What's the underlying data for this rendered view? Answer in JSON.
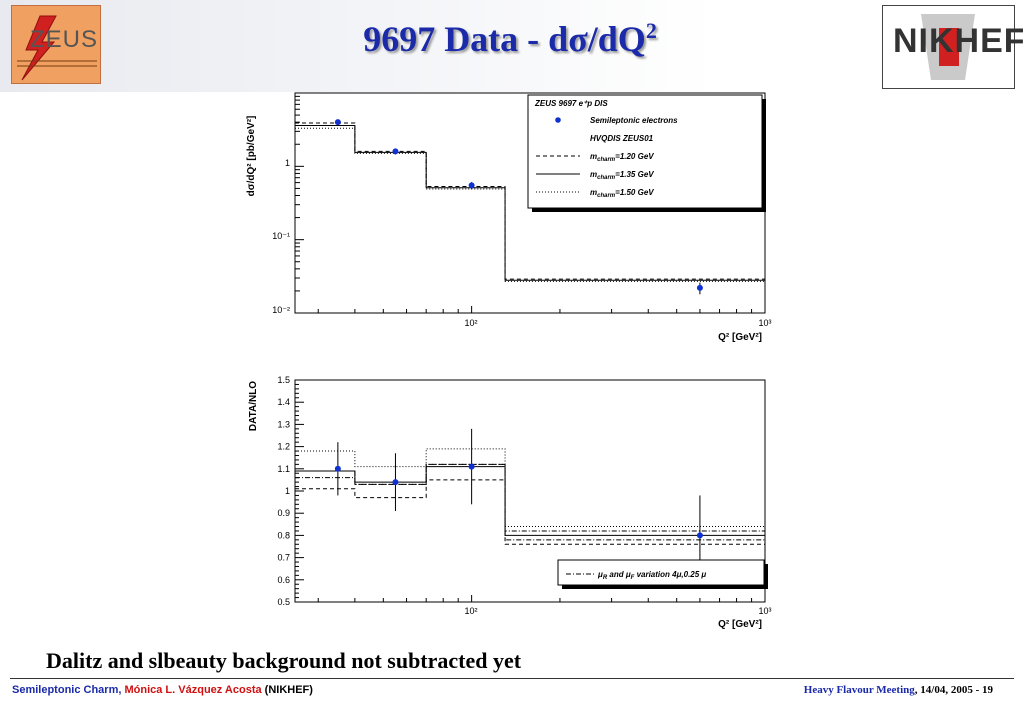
{
  "header": {
    "title_main": "9697 Data - d",
    "title_sigma": "σ",
    "title_mid": "/dQ",
    "title_sup": "2",
    "zeus_logo_text": "ZEUS",
    "nikhef_logo_text": "NIKHEF"
  },
  "subtitle": "Dalitz and slbeauty background not subtracted yet",
  "footer": {
    "left_part1": "Semileptonic Charm, ",
    "left_author": "Mónica L. Vázquez Acosta",
    "left_part2": " (NIKHEF)",
    "right_meeting": "Heavy Flavour Meeting",
    "right_date": ", 14/04, 2005 -  19"
  },
  "colors": {
    "title": "#1a2aa8",
    "data_points": "#1030d0",
    "author": "#d01010"
  },
  "chart_data": [
    {
      "type": "line",
      "scale": "log-log",
      "xlabel": "Q² [GeV²]",
      "ylabel": "dσ/dQ² [pb/GeV²]",
      "xlim": [
        25,
        1000
      ],
      "ylim": [
        0.01,
        10
      ],
      "x_tick_labels": [
        "10²",
        "10³"
      ],
      "y_tick_labels": [
        "10⁻²",
        "10⁻¹",
        "1"
      ],
      "bin_edges": [
        25,
        40,
        70,
        130,
        1000
      ],
      "data": {
        "name": "Semileptonic electrons",
        "x": [
          35,
          55,
          100,
          600
        ],
        "y": [
          4.0,
          1.6,
          0.55,
          0.022
        ],
        "err": [
          0.35,
          0.15,
          0.06,
          0.004
        ]
      },
      "series": [
        {
          "name": "m_charm=1.20 GeV",
          "style": "dashed",
          "values": [
            3.9,
            1.6,
            0.53,
            0.029
          ]
        },
        {
          "name": "m_charm=1.35 GeV",
          "style": "solid",
          "values": [
            3.6,
            1.55,
            0.51,
            0.028
          ]
        },
        {
          "name": "m_charm=1.50 GeV",
          "style": "dotted",
          "values": [
            3.3,
            1.5,
            0.49,
            0.027
          ]
        }
      ],
      "legend": {
        "position": "top-right",
        "title_text": "ZEUS 9697 e⁺p DIS",
        "data_label": "Semileptonic electrons",
        "theory_label": "HVQDIS ZEUS01",
        "mass_prefix": "m",
        "mass_sub": "charm",
        "entries": [
          "=1.20 GeV",
          "=1.35 GeV",
          "=1.50 GeV"
        ]
      }
    },
    {
      "type": "line",
      "scale": "log-x",
      "xlabel": "Q² [GeV²]",
      "ylabel": "DATA/NLO",
      "xlim": [
        25,
        1000
      ],
      "ylim": [
        0.5,
        1.5
      ],
      "x_tick_labels": [
        "10²",
        "10³"
      ],
      "y_tick_labels": [
        "0.5",
        "0.6",
        "0.7",
        "0.8",
        "0.9",
        "1",
        "1.1",
        "1.2",
        "1.3",
        "1.4",
        "1.5"
      ],
      "bin_edges": [
        25,
        40,
        70,
        130,
        1000
      ],
      "data": {
        "x": [
          35,
          55,
          100,
          600
        ],
        "y": [
          1.1,
          1.04,
          1.11,
          0.8
        ],
        "err": [
          0.12,
          0.13,
          0.17,
          0.18
        ]
      },
      "series": [
        {
          "name": "1.20",
          "style": "dashed",
          "values": [
            1.01,
            0.97,
            1.05,
            0.76
          ]
        },
        {
          "name": "1.35",
          "style": "solid",
          "values": [
            1.09,
            1.04,
            1.11,
            0.8
          ]
        },
        {
          "name": "1.50",
          "style": "dotted",
          "values": [
            1.18,
            1.11,
            1.19,
            0.84
          ]
        },
        {
          "name": "mu-up",
          "style": "dashdot",
          "values": [
            1.06,
            1.03,
            1.12,
            0.82
          ]
        },
        {
          "name": "mu-down",
          "style": "dashdot",
          "values": [
            1.09,
            1.03,
            1.12,
            0.78
          ]
        }
      ],
      "legend": {
        "position": "bottom-right",
        "mu_r": "μ",
        "sub_r": "R",
        "and_text": " and ",
        "mu_f": "μ",
        "sub_f": "F",
        "variation_text": " variation 4μ,0.25 μ"
      }
    }
  ]
}
